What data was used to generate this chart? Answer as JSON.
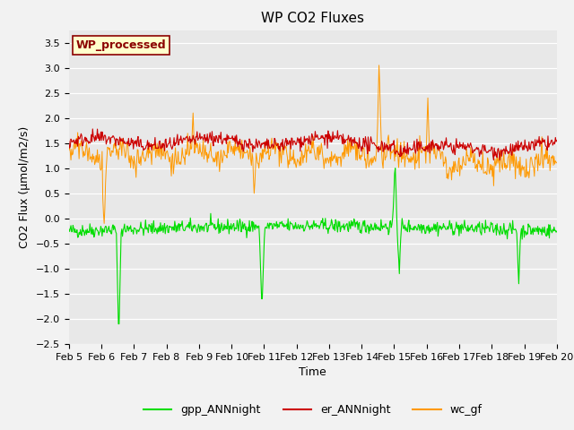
{
  "title": "WP CO2 Fluxes",
  "xlabel": "Time",
  "ylabel": "CO2 Flux (μmol/m2/s)",
  "ylim": [
    -2.5,
    3.75
  ],
  "yticks": [
    -2.5,
    -2.0,
    -1.5,
    -1.0,
    -0.5,
    0.0,
    0.5,
    1.0,
    1.5,
    2.0,
    2.5,
    3.0,
    3.5
  ],
  "x_start_day": 5,
  "x_end_day": 20,
  "xtick_days": [
    5,
    6,
    7,
    8,
    9,
    10,
    11,
    12,
    13,
    14,
    15,
    16,
    17,
    18,
    19,
    20
  ],
  "n_points": 720,
  "n_days": 15,
  "color_gpp": "#00dd00",
  "color_er": "#cc0000",
  "color_wc": "#ff9900",
  "legend_labels": [
    "gpp_ANNnight",
    "er_ANNnight",
    "wc_gf"
  ],
  "annotation_text": "WP_processed",
  "annotation_color": "#8B0000",
  "annotation_bg": "#ffffcc",
  "fig_bg": "#f2f2f2",
  "plot_bg": "#e8e8e8",
  "title_fontsize": 11,
  "axis_fontsize": 9,
  "tick_fontsize": 8,
  "legend_fontsize": 9
}
